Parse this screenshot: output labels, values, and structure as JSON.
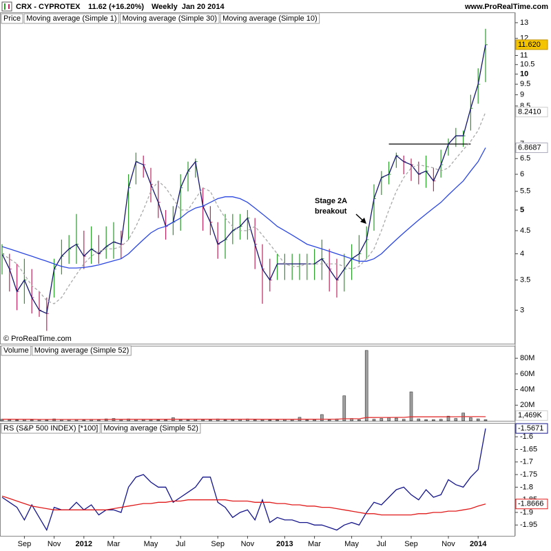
{
  "chart_data": [
    {
      "type": "ohlc",
      "title": "CRX - CYPROTEX",
      "subtitle": "11.62 (+16.20%)",
      "period": "Weekly  Jan 20 2014",
      "source": "www.ProRealTime.com",
      "watermark": "© ProRealTime.com",
      "legend_label": "Price",
      "log_scale": true,
      "up_color": "#2a9a2a",
      "down_color": "#c0245c",
      "high": [
        4.2,
        4.0,
        3.8,
        3.9,
        3.7,
        3.3,
        3.2,
        3.9,
        4.3,
        4.4,
        4.9,
        4.5,
        4.6,
        4.4,
        4.6,
        4.7,
        4.5,
        6.0,
        6.7,
        6.6,
        6.2,
        5.8,
        5.0,
        5.1,
        6.0,
        6.4,
        6.5,
        5.6,
        5.1,
        4.7,
        4.9,
        4.9,
        4.9,
        5.0,
        4.8,
        4.2,
        3.9,
        4.0,
        4.0,
        4.0,
        4.0,
        4.0,
        4.1,
        4.3,
        4.1,
        3.9,
        4.0,
        4.2,
        4.4,
        4.6,
        5.7,
        6.1,
        6.4,
        6.7,
        6.6,
        6.5,
        6.4,
        6.6,
        6.2,
        6.8,
        7.2,
        7.6,
        7.5,
        9.0,
        10.3,
        12.6
      ],
      "low": [
        3.6,
        3.3,
        3.0,
        3.1,
        2.95,
        2.9,
        2.7,
        3.2,
        3.6,
        3.8,
        3.8,
        3.7,
        3.8,
        3.8,
        3.9,
        3.9,
        3.9,
        4.3,
        5.7,
        5.9,
        5.2,
        4.8,
        4.3,
        4.4,
        4.5,
        5.5,
        5.9,
        4.5,
        4.4,
        3.9,
        3.9,
        4.2,
        4.3,
        4.3,
        3.7,
        3.1,
        3.3,
        3.5,
        3.5,
        3.5,
        3.5,
        3.5,
        3.5,
        3.5,
        3.3,
        3.2,
        3.3,
        3.5,
        3.8,
        3.9,
        4.5,
        5.4,
        5.7,
        6.2,
        6.0,
        5.8,
        5.7,
        5.6,
        5.5,
        5.9,
        6.6,
        6.9,
        6.9,
        7.5,
        8.6,
        9.6
      ],
      "close": [
        4.0,
        3.7,
        3.3,
        3.5,
        3.2,
        3.0,
        2.95,
        3.7,
        3.95,
        4.1,
        4.2,
        3.95,
        4.1,
        4.0,
        4.15,
        4.25,
        4.2,
        5.6,
        6.4,
        6.3,
        5.7,
        5.2,
        4.6,
        4.7,
        5.6,
        6.1,
        6.4,
        5.1,
        4.7,
        4.2,
        4.3,
        4.5,
        4.6,
        4.8,
        4.2,
        3.7,
        3.5,
        3.8,
        3.8,
        3.8,
        3.8,
        3.8,
        3.8,
        3.9,
        3.7,
        3.5,
        3.7,
        3.9,
        4.0,
        4.3,
        5.3,
        5.9,
        6.0,
        6.6,
        6.4,
        6.3,
        6.0,
        6.1,
        5.8,
        6.3,
        7.0,
        7.3,
        7.3,
        8.4,
        9.5,
        11.62
      ],
      "last_label": "11.620",
      "series": [
        {
          "name": "Moving average (Simple 1)",
          "color": "#14146e"
        },
        {
          "name": "Moving average (Simple 30)",
          "color": "#2a46e0",
          "values": [
            4.15,
            4.1,
            4.05,
            4.0,
            3.95,
            3.9,
            3.85,
            3.8,
            3.75,
            3.72,
            3.72,
            3.73,
            3.75,
            3.78,
            3.82,
            3.86,
            3.9,
            4.0,
            4.15,
            4.3,
            4.45,
            4.55,
            4.6,
            4.7,
            4.8,
            4.95,
            5.05,
            5.1,
            5.2,
            5.3,
            5.35,
            5.35,
            5.3,
            5.2,
            5.05,
            4.9,
            4.75,
            4.6,
            4.5,
            4.4,
            4.3,
            4.2,
            4.15,
            4.1,
            4.05,
            4.0,
            3.95,
            3.9,
            3.85,
            3.85,
            3.9,
            4.0,
            4.15,
            4.3,
            4.45,
            4.6,
            4.75,
            4.9,
            5.05,
            5.2,
            5.4,
            5.6,
            5.8,
            6.1,
            6.4,
            6.8687
          ]
        },
        {
          "name": "Moving average (Simple 10)",
          "color": "#a8a8a8",
          "last_label": "8.2410",
          "values": [
            4.0,
            3.9,
            3.8,
            3.6,
            3.4,
            3.3,
            3.15,
            3.1,
            3.2,
            3.4,
            3.6,
            3.8,
            3.95,
            4.05,
            4.1,
            4.1,
            4.15,
            4.3,
            4.6,
            5.0,
            5.5,
            5.8,
            5.6,
            5.3,
            5.0,
            5.0,
            5.3,
            5.6,
            5.5,
            5.1,
            4.8,
            4.6,
            4.5,
            4.5,
            4.6,
            4.4,
            4.2,
            4.0,
            3.8,
            3.75,
            3.75,
            3.8,
            3.8,
            3.8,
            3.8,
            3.8,
            3.75,
            3.7,
            3.75,
            3.9,
            4.1,
            4.5,
            5.0,
            5.5,
            5.9,
            6.2,
            6.3,
            6.25,
            6.2,
            6.1,
            6.2,
            6.5,
            6.8,
            7.1,
            7.5,
            8.241
          ]
        }
      ],
      "level_line": 7,
      "annotation": [
        "Stage 2A",
        "breakout"
      ],
      "ylim": [
        2.52,
        13.7
      ],
      "yticks": [
        3,
        3.5,
        4,
        4.5,
        5,
        5.5,
        6,
        6.5,
        7,
        8.5,
        9,
        9.5,
        10,
        10.5,
        11,
        12,
        13
      ]
    },
    {
      "type": "bar",
      "series": [
        {
          "name": "Volume",
          "color": "#a0a0a0",
          "last_label": "1,469K",
          "values": [
            2.0,
            1.5,
            1.0,
            1.8,
            1.2,
            1.5,
            1.0,
            2.5,
            1.5,
            1.8,
            1.5,
            1.0,
            2.0,
            1.2,
            2.5,
            3.0,
            1.5,
            2.5,
            1.8,
            2.0,
            1.5,
            1.0,
            1.2,
            4.0,
            1.5,
            1.0,
            2.0,
            1.5,
            1.2,
            2.5,
            1.0,
            1.5,
            2.0,
            2.5,
            1.2,
            1.5,
            1.0,
            1.0,
            2.0,
            1.5,
            4.5,
            1.0,
            1.5,
            8.0,
            1.2,
            2.5,
            32,
            3.0,
            1.5,
            90,
            2.0,
            3.0,
            4.0,
            3.5,
            2.0,
            37,
            2.5,
            1.5,
            1.5,
            2.0,
            6.0,
            3.0,
            10.0,
            4.0,
            2.5,
            1.469
          ]
        },
        {
          "name": "Moving average (Simple 52)",
          "color": "#e03030",
          "values": [
            2.0,
            2.0,
            1.9,
            1.9,
            1.9,
            1.8,
            1.8,
            1.8,
            1.8,
            1.8,
            1.8,
            1.8,
            1.8,
            1.8,
            1.8,
            1.9,
            1.9,
            1.9,
            1.9,
            1.9,
            1.9,
            1.9,
            1.9,
            2.0,
            2.0,
            2.0,
            2.0,
            2.0,
            2.0,
            2.0,
            2.0,
            2.0,
            2.0,
            2.0,
            2.0,
            1.9,
            1.9,
            1.9,
            1.9,
            1.9,
            2.0,
            2.0,
            2.0,
            2.1,
            2.1,
            2.1,
            2.6,
            2.6,
            2.6,
            4.2,
            4.2,
            4.3,
            4.3,
            4.4,
            4.4,
            5.1,
            5.1,
            5.1,
            5.1,
            5.1,
            5.2,
            5.2,
            5.4,
            5.4,
            5.4,
            5.3
          ]
        }
      ],
      "ylim": [
        0,
        96
      ],
      "yticks": [
        {
          "value": 20,
          "label": "20M"
        },
        {
          "value": 40,
          "label": "40M"
        },
        {
          "value": 60,
          "label": "60M"
        },
        {
          "value": 80,
          "label": "80M"
        }
      ]
    },
    {
      "type": "line",
      "categories": [
        null,
        null,
        null,
        "Sep",
        null,
        null,
        null,
        "Nov",
        null,
        null,
        null,
        "2012",
        null,
        null,
        null,
        "Mar",
        null,
        null,
        null,
        null,
        "May",
        null,
        null,
        null,
        "Jul",
        null,
        null,
        null,
        null,
        "Sep",
        null,
        null,
        null,
        "Nov",
        null,
        null,
        null,
        null,
        "2013",
        null,
        null,
        null,
        "Mar",
        null,
        null,
        null,
        null,
        "May",
        null,
        null,
        null,
        "Jul",
        null,
        null,
        null,
        "Sep",
        null,
        null,
        null,
        null,
        "Nov",
        null,
        null,
        null,
        "2014",
        null
      ],
      "series": [
        {
          "name": "RS (S&P 500 INDEX) [*100]",
          "color": "#14148a",
          "values": [
            -1.84,
            -1.86,
            -1.88,
            -1.93,
            -1.87,
            -1.92,
            -1.97,
            -1.88,
            -1.89,
            -1.89,
            -1.86,
            -1.89,
            -1.87,
            -1.91,
            -1.89,
            -1.89,
            -1.9,
            -1.8,
            -1.76,
            -1.75,
            -1.78,
            -1.8,
            -1.8,
            -1.86,
            -1.84,
            -1.82,
            -1.8,
            -1.76,
            -1.76,
            -1.86,
            -1.88,
            -1.92,
            -1.9,
            -1.89,
            -1.93,
            -1.85,
            -1.94,
            -1.92,
            -1.93,
            -1.93,
            -1.94,
            -1.94,
            -1.95,
            -1.95,
            -1.96,
            -1.97,
            -1.95,
            -1.94,
            -1.95,
            -1.9,
            -1.86,
            -1.87,
            -1.84,
            -1.81,
            -1.8,
            -1.83,
            -1.85,
            -1.81,
            -1.84,
            -1.83,
            -1.77,
            -1.79,
            -1.8,
            -1.76,
            -1.73,
            -1.5671
          ]
        },
        {
          "name": "Moving average (Simple 52)",
          "color": "#e01818",
          "values": [
            -1.835,
            -1.845,
            -1.855,
            -1.865,
            -1.875,
            -1.88,
            -1.885,
            -1.89,
            -1.89,
            -1.89,
            -1.89,
            -1.89,
            -1.89,
            -1.89,
            -1.89,
            -1.885,
            -1.88,
            -1.875,
            -1.87,
            -1.865,
            -1.865,
            -1.86,
            -1.86,
            -1.855,
            -1.855,
            -1.85,
            -1.85,
            -1.85,
            -1.85,
            -1.85,
            -1.85,
            -1.855,
            -1.855,
            -1.855,
            -1.86,
            -1.86,
            -1.86,
            -1.865,
            -1.865,
            -1.87,
            -1.87,
            -1.875,
            -1.875,
            -1.88,
            -1.88,
            -1.885,
            -1.89,
            -1.895,
            -1.9,
            -1.905,
            -1.905,
            -1.91,
            -1.91,
            -1.91,
            -1.91,
            -1.91,
            -1.905,
            -1.905,
            -1.9,
            -1.9,
            -1.895,
            -1.895,
            -1.89,
            -1.885,
            -1.875,
            -1.8666
          ]
        }
      ],
      "ylim": [
        -1.993,
        -1.545
      ],
      "yticks": [
        -1.6,
        -1.65,
        -1.7,
        -1.75,
        -1.8,
        -1.85,
        -1.9,
        -1.95
      ]
    }
  ]
}
